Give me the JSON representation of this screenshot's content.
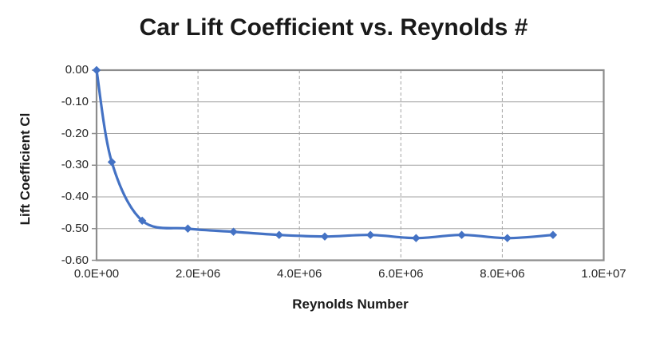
{
  "chart_data": {
    "type": "line",
    "title": "Car Lift Coefficient vs. Reynolds #",
    "xlabel": "Reynolds Number",
    "ylabel": "Lift Coefficient Cl",
    "series": [
      {
        "name": "Lift Coefficient Cl",
        "x": [
          0,
          300000,
          900000,
          1800000,
          2700000,
          3600000,
          4500000,
          5400000,
          6300000,
          7200000,
          8100000,
          9000000
        ],
        "y": [
          0.0,
          -0.29,
          -0.475,
          -0.5,
          -0.51,
          -0.52,
          -0.525,
          -0.52,
          -0.53,
          -0.52,
          -0.53,
          -0.52
        ]
      }
    ],
    "xlim": [
      0,
      10000000
    ],
    "ylim": [
      -0.6,
      0
    ],
    "x_ticks": [
      "0.0E+00",
      "2.0E+06",
      "4.0E+06",
      "6.0E+06",
      "8.0E+06",
      "1.0E+07"
    ],
    "y_ticks": [
      "0.00",
      "-0.10",
      "-0.20",
      "-0.30",
      "-0.40",
      "-0.50",
      "-0.60"
    ],
    "marker": "diamond",
    "smooth": true,
    "legend": "none",
    "grid": {
      "horizontal": "solid",
      "vertical": "dashed"
    }
  },
  "colors": {
    "line": "#4472C4",
    "marker": "#4472C4",
    "gridline": "#a3a3a3",
    "border": "#8c8c8c",
    "title_text": "#1a1a1a",
    "tick_text": "#262626",
    "background": "#ffffff"
  }
}
